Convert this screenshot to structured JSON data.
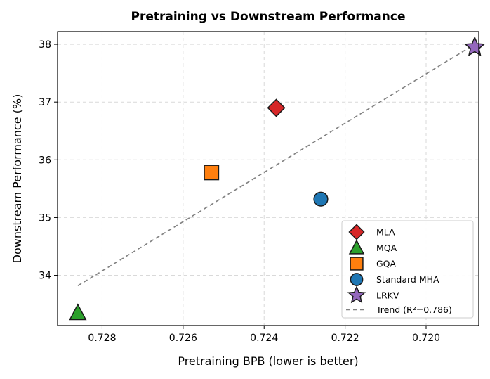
{
  "chart_data": {
    "type": "scatter",
    "title": "Pretraining vs Downstream Performance",
    "xlabel": "Pretraining BPB (lower is better)",
    "ylabel": "Downstream Performance (%)",
    "x_inverted": true,
    "xlim": [
      0.7291,
      0.7187
    ],
    "ylim": [
      33.13,
      38.22
    ],
    "xticks": [
      0.728,
      0.726,
      0.724,
      0.722,
      0.72
    ],
    "xtick_labels": [
      "0.728",
      "0.726",
      "0.724",
      "0.722",
      "0.720"
    ],
    "yticks": [
      34,
      35,
      36,
      37,
      38
    ],
    "ytick_labels": [
      "34",
      "35",
      "36",
      "37",
      "38"
    ],
    "grid": true,
    "legend_position": "bottom-right",
    "series": [
      {
        "name": "MLA",
        "x": 0.7237,
        "y": 36.9,
        "marker": "diamond",
        "color": "#d62728"
      },
      {
        "name": "MQA",
        "x": 0.7286,
        "y": 33.35,
        "marker": "triangle",
        "color": "#2ca02c"
      },
      {
        "name": "GQA",
        "x": 0.7253,
        "y": 35.78,
        "marker": "square",
        "color": "#ff7f0e"
      },
      {
        "name": "Standard MHA",
        "x": 0.7226,
        "y": 35.32,
        "marker": "circle",
        "color": "#1f77b4"
      },
      {
        "name": "LRKV",
        "x": 0.7188,
        "y": 37.95,
        "marker": "star",
        "color": "#9467bd"
      }
    ],
    "trend": {
      "label": "Trend (R²=0.786)",
      "x": [
        0.7286,
        0.7188
      ],
      "y": [
        33.82,
        38.0
      ],
      "color": "#808080"
    }
  }
}
